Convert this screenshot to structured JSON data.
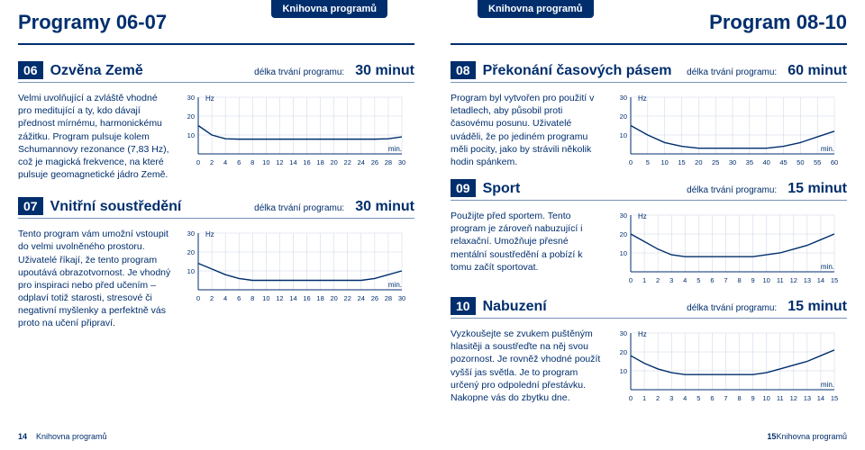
{
  "library_tab": "Knihovna programů",
  "left_header": "Programy 06-07",
  "right_header": "Program 08-10",
  "duration_label": "délka trvání programu:",
  "footer_label": "Knihovna programů",
  "page_left": "14",
  "page_right": "15",
  "hz_label": "Hz",
  "min_label": "min.",
  "chart_style": {
    "line_color": "#002e6d",
    "axis_color": "#002e6d",
    "grid_color": "#c9d3e4",
    "line_width": 1.4
  },
  "programs": {
    "p06": {
      "num": "06",
      "title": "Ozvěna Země",
      "duration": "30 minut",
      "desc": "Velmi uvolňující a zvláště vhodné pro meditující a ty, kdo dávají přednost mírnému, harmonickému zážitku. Program pulsuje kolem Schumannovy rezonance (7,83 Hz), což je magická frekvence, na které pulsuje geomagnetické jádro Země.",
      "chart": {
        "x_max": 30,
        "x_step": 2,
        "y_ticks": [
          10,
          20,
          30
        ],
        "points": [
          [
            0,
            15
          ],
          [
            2,
            10
          ],
          [
            4,
            8
          ],
          [
            6,
            7.8
          ],
          [
            8,
            7.8
          ],
          [
            10,
            7.8
          ],
          [
            12,
            7.8
          ],
          [
            14,
            7.8
          ],
          [
            16,
            7.8
          ],
          [
            18,
            7.8
          ],
          [
            20,
            7.8
          ],
          [
            22,
            7.8
          ],
          [
            24,
            7.8
          ],
          [
            26,
            7.8
          ],
          [
            28,
            8
          ],
          [
            30,
            9
          ]
        ]
      }
    },
    "p07": {
      "num": "07",
      "title": "Vnitřní soustředění",
      "duration": "30 minut",
      "desc": "Tento program vám umožní vstoupit do velmi uvolněného prostoru. Uživatelé říkají, že tento program upoutává obrazotvornost. Je vhodný pro inspiraci nebo před učením – odplaví totiž starosti, stresové či negativní myšlenky a perfektně vás proto na učení připraví.",
      "chart": {
        "x_max": 30,
        "x_step": 2,
        "y_ticks": [
          10,
          20,
          30
        ],
        "points": [
          [
            0,
            14
          ],
          [
            2,
            11
          ],
          [
            4,
            8
          ],
          [
            6,
            6
          ],
          [
            8,
            5
          ],
          [
            10,
            5
          ],
          [
            12,
            5
          ],
          [
            14,
            5
          ],
          [
            16,
            5
          ],
          [
            18,
            5
          ],
          [
            20,
            5
          ],
          [
            22,
            5
          ],
          [
            24,
            5
          ],
          [
            26,
            6
          ],
          [
            28,
            8
          ],
          [
            30,
            10
          ]
        ]
      }
    },
    "p08": {
      "num": "08",
      "title": "Překonání časových pásem",
      "duration": "60 minut",
      "desc": "Program byl vytvořen pro použití v letadlech, aby působil proti časovému posunu. Uživatelé uváděli, že po jediném programu měli pocity, jako by strávili několik hodin spánkem.",
      "chart": {
        "x_max": 60,
        "x_step": 5,
        "y_ticks": [
          10,
          20,
          30
        ],
        "points": [
          [
            0,
            15
          ],
          [
            5,
            10
          ],
          [
            10,
            6
          ],
          [
            15,
            4
          ],
          [
            20,
            3
          ],
          [
            25,
            3
          ],
          [
            30,
            3
          ],
          [
            35,
            3
          ],
          [
            40,
            3
          ],
          [
            45,
            4
          ],
          [
            50,
            6
          ],
          [
            55,
            9
          ],
          [
            60,
            12
          ]
        ]
      }
    },
    "p09": {
      "num": "09",
      "title": "Sport",
      "duration": "15 minut",
      "desc": "Použijte před sportem. Tento program je zároveň nabuzující i relaxační. Umožňuje přesné mentální soustředění a pobízí k tomu začít sportovat.",
      "chart": {
        "x_max": 15,
        "x_step": 1,
        "y_ticks": [
          10,
          20,
          30
        ],
        "points": [
          [
            0,
            20
          ],
          [
            1,
            16
          ],
          [
            2,
            12
          ],
          [
            3,
            9
          ],
          [
            4,
            8
          ],
          [
            5,
            8
          ],
          [
            6,
            8
          ],
          [
            7,
            8
          ],
          [
            8,
            8
          ],
          [
            9,
            8
          ],
          [
            10,
            9
          ],
          [
            11,
            10
          ],
          [
            12,
            12
          ],
          [
            13,
            14
          ],
          [
            14,
            17
          ],
          [
            15,
            20
          ]
        ]
      }
    },
    "p10": {
      "num": "10",
      "title": "Nabuzení",
      "duration": "15 minut",
      "desc": "Vyzkoušejte se zvukem puštěným hlasitěji a soustřeďte na něj svou pozornost. Je rovněž vhodné použít vyšší jas světla. Je to program určený pro odpolední přestávku. Nakopne vás do zbytku dne.",
      "chart": {
        "x_max": 15,
        "x_step": 1,
        "y_ticks": [
          10,
          20,
          30
        ],
        "points": [
          [
            0,
            18
          ],
          [
            1,
            14
          ],
          [
            2,
            11
          ],
          [
            3,
            9
          ],
          [
            4,
            8
          ],
          [
            5,
            8
          ],
          [
            6,
            8
          ],
          [
            7,
            8
          ],
          [
            8,
            8
          ],
          [
            9,
            8
          ],
          [
            10,
            9
          ],
          [
            11,
            11
          ],
          [
            12,
            13
          ],
          [
            13,
            15
          ],
          [
            14,
            18
          ],
          [
            15,
            21
          ]
        ]
      }
    }
  }
}
